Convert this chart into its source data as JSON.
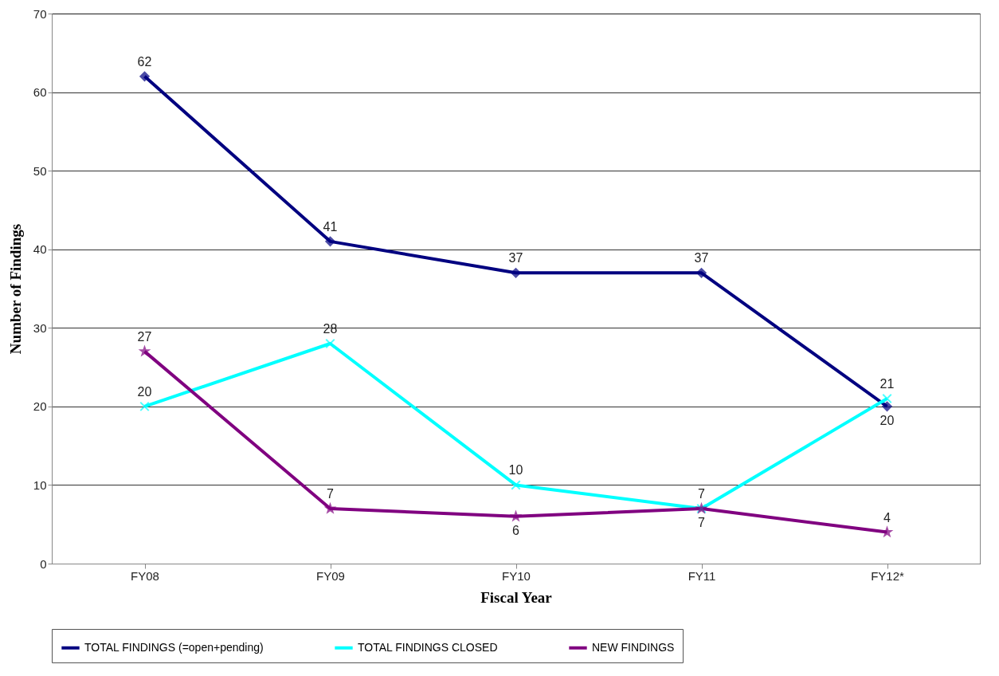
{
  "chart_data": {
    "type": "line",
    "xlabel": "Fiscal Year",
    "ylabel": "Number of Findings",
    "categories": [
      "FY08",
      "FY09",
      "FY10",
      "FY11",
      "FY12*"
    ],
    "series": [
      {
        "name": "TOTAL FINDINGS (=open+pending)",
        "color": "#000080",
        "marker": "diamond",
        "values": [
          62,
          41,
          37,
          37,
          20
        ]
      },
      {
        "name": "TOTAL FINDINGS CLOSED",
        "color": "#00ffff",
        "marker": "cross",
        "values": [
          20,
          28,
          10,
          7,
          21
        ]
      },
      {
        "name": "NEW FINDINGS",
        "color": "#800080",
        "marker": "star",
        "values": [
          27,
          7,
          6,
          7,
          4
        ]
      }
    ],
    "ylim": [
      0,
      70
    ],
    "yticks": [
      0,
      10,
      20,
      30,
      40,
      50,
      60,
      70
    ],
    "grid": "y",
    "legend": "bottom",
    "data_labels": true
  }
}
